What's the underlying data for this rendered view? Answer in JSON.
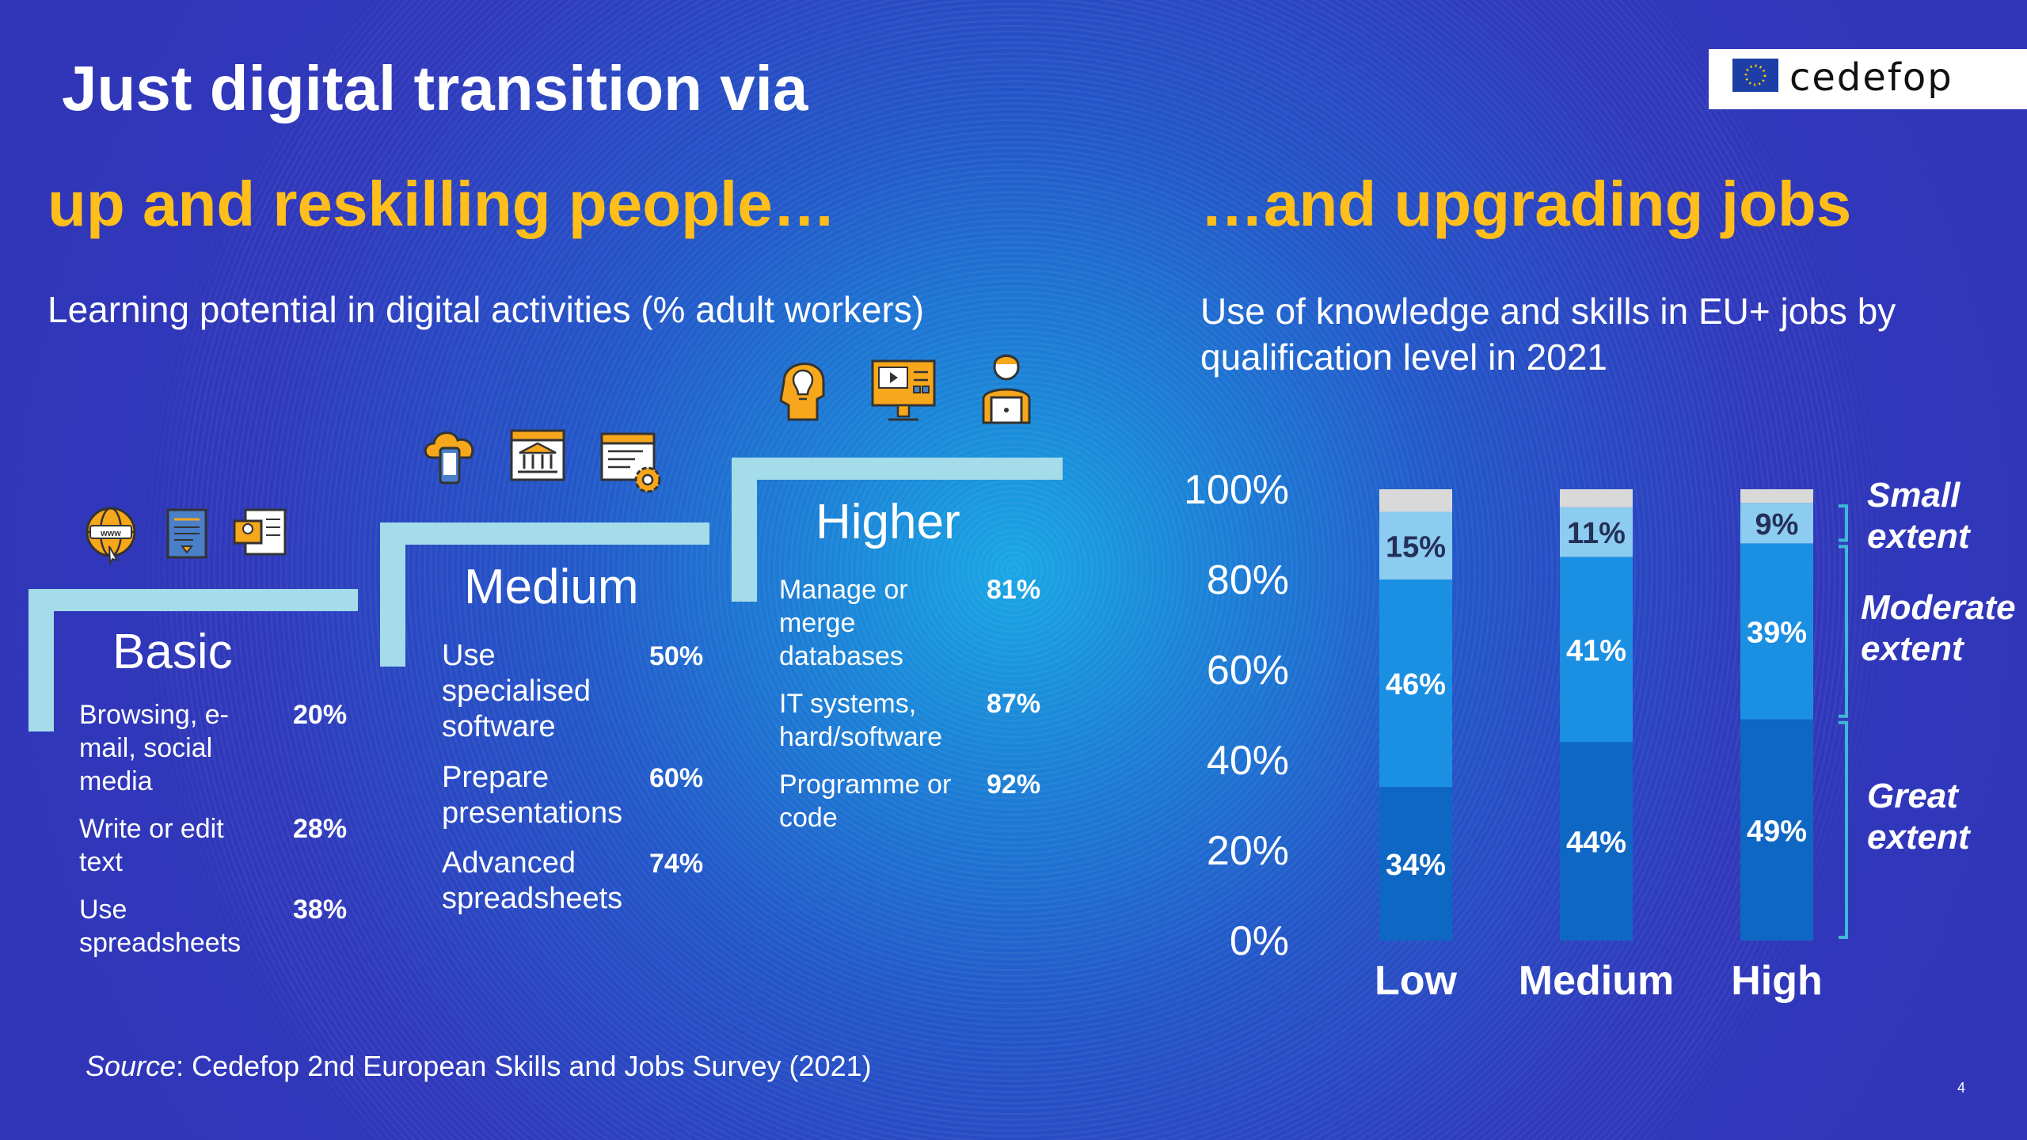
{
  "header": {
    "title_line1": "Just digital transition via",
    "title_line2": "up and reskilling people…",
    "title_right": "…and upgrading jobs",
    "left_subtitle": "Learning potential in digital activities (% adult workers)",
    "right_subtitle": "Use of knowledge and skills in EU+ jobs by qualification level in 2021"
  },
  "logo": {
    "text": "cedefop"
  },
  "steps": [
    {
      "title": "Basic",
      "icons": [
        "globe-www-icon",
        "document-list-icon",
        "id-card-icon"
      ],
      "items": [
        {
          "label": "Browsing, e-mail, social media",
          "pct": "20%"
        },
        {
          "label": "Write or edit text",
          "pct": "28%"
        },
        {
          "label": "Use spreadsheets",
          "pct": "38%"
        }
      ]
    },
    {
      "title": "Medium",
      "icons": [
        "cloud-phone-icon",
        "bank-browser-icon",
        "web-settings-icon"
      ],
      "items": [
        {
          "label": "Use specialised software",
          "pct": "50%"
        },
        {
          "label": "Prepare presentations",
          "pct": "60%"
        },
        {
          "label": "Advanced spreadsheets",
          "pct": "74%"
        }
      ]
    },
    {
      "title": "Higher",
      "icons": [
        "ai-head-icon",
        "monitor-video-icon",
        "programmer-icon"
      ],
      "items": [
        {
          "label": "Manage or merge databases",
          "pct": "81%"
        },
        {
          "label": "IT systems, hard/software",
          "pct": "87%"
        },
        {
          "label": "Programme or code",
          "pct": "92%"
        }
      ]
    }
  ],
  "chart_data": {
    "type": "bar",
    "stacked": true,
    "categories": [
      "Low",
      "Medium",
      "High"
    ],
    "series": [
      {
        "name": "Great extent",
        "values": [
          34,
          44,
          49
        ],
        "labels": [
          "34%",
          "44%",
          "49%"
        ],
        "color": "#0f67c4"
      },
      {
        "name": "Moderate extent",
        "values": [
          46,
          41,
          39
        ],
        "labels": [
          "46%",
          "41%",
          "39%"
        ],
        "color": "#1b8fe2"
      },
      {
        "name": "Small extent",
        "values": [
          15,
          11,
          9
        ],
        "labels": [
          "15%",
          "11%",
          "9%"
        ],
        "color": "#8cccf1"
      },
      {
        "name": "",
        "values": [
          5,
          4,
          3
        ],
        "labels": [
          "",
          "",
          ""
        ],
        "color": "#d9d9d9"
      }
    ],
    "legend_lines": [
      [
        "Small",
        "extent"
      ],
      [
        "Moderate",
        "extent"
      ],
      [
        "Great",
        "extent"
      ]
    ],
    "ylim": [
      0,
      100
    ],
    "yticks": [
      "0%",
      "20%",
      "40%",
      "60%",
      "80%",
      "100%"
    ],
    "legend_position": "right"
  },
  "source": {
    "prefix": "Source",
    "text": ": Cedefop 2nd European Skills and Jobs Survey (2021)"
  },
  "page_number": "4"
}
